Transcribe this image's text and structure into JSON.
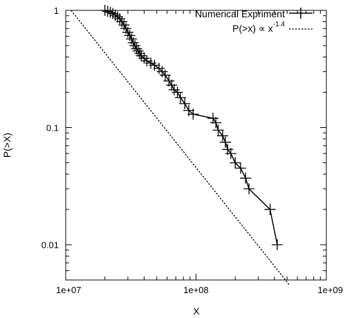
{
  "chart_data": {
    "type": "line",
    "xscale": "log",
    "yscale": "log",
    "xlim": [
      10000000,
      1000000000
    ],
    "ylim": [
      0.005,
      1
    ],
    "xlabel": "X",
    "ylabel": "P(>X)",
    "xticks": [
      {
        "value": 10000000,
        "label": "1e+07"
      },
      {
        "value": 100000000,
        "label": "1e+08"
      },
      {
        "value": 1000000000,
        "label": "1e+09"
      }
    ],
    "yticks": [
      {
        "value": 1,
        "label": "1"
      },
      {
        "value": 0.1,
        "label": "0.1"
      },
      {
        "value": 0.01,
        "label": "0.01"
      }
    ],
    "grid": false,
    "legend_position": "top-right",
    "series": [
      {
        "name": "Numerical Expriment",
        "style": "lines+crosses",
        "color": "#000000",
        "x": [
          20000000,
          21000000,
          22000000,
          23000000,
          24000000,
          25000000,
          26000000,
          27000000,
          28000000,
          29000000,
          30000000,
          31000000,
          32000000,
          33000000,
          34000000,
          35000000,
          36000000,
          37000000,
          38000000,
          40000000,
          42000000,
          45000000,
          48000000,
          52000000,
          55000000,
          58000000,
          62000000,
          65000000,
          68000000,
          72000000,
          76000000,
          82000000,
          88000000,
          95000000,
          135000000,
          142000000,
          148000000,
          160000000,
          168000000,
          175000000,
          185000000,
          200000000,
          220000000,
          240000000,
          255000000,
          370000000,
          420000000
        ],
        "y": [
          1.0,
          0.98,
          0.96,
          0.94,
          0.91,
          0.88,
          0.85,
          0.8,
          0.75,
          0.7,
          0.65,
          0.61,
          0.57,
          0.53,
          0.5,
          0.47,
          0.45,
          0.43,
          0.41,
          0.39,
          0.37,
          0.355,
          0.34,
          0.32,
          0.3,
          0.28,
          0.25,
          0.23,
          0.21,
          0.2,
          0.18,
          0.16,
          0.14,
          0.13,
          0.12,
          0.11,
          0.095,
          0.085,
          0.075,
          0.065,
          0.06,
          0.05,
          0.045,
          0.037,
          0.03,
          0.02,
          0.01
        ]
      },
      {
        "name": "P(>x) ∝ x",
        "name_superscript": "-1.4",
        "style": "dashed",
        "color": "#000000",
        "exponent": -1.4,
        "x": [
          11000000,
          520000000
        ],
        "y": [
          1.0,
          0.00454
        ]
      }
    ]
  }
}
